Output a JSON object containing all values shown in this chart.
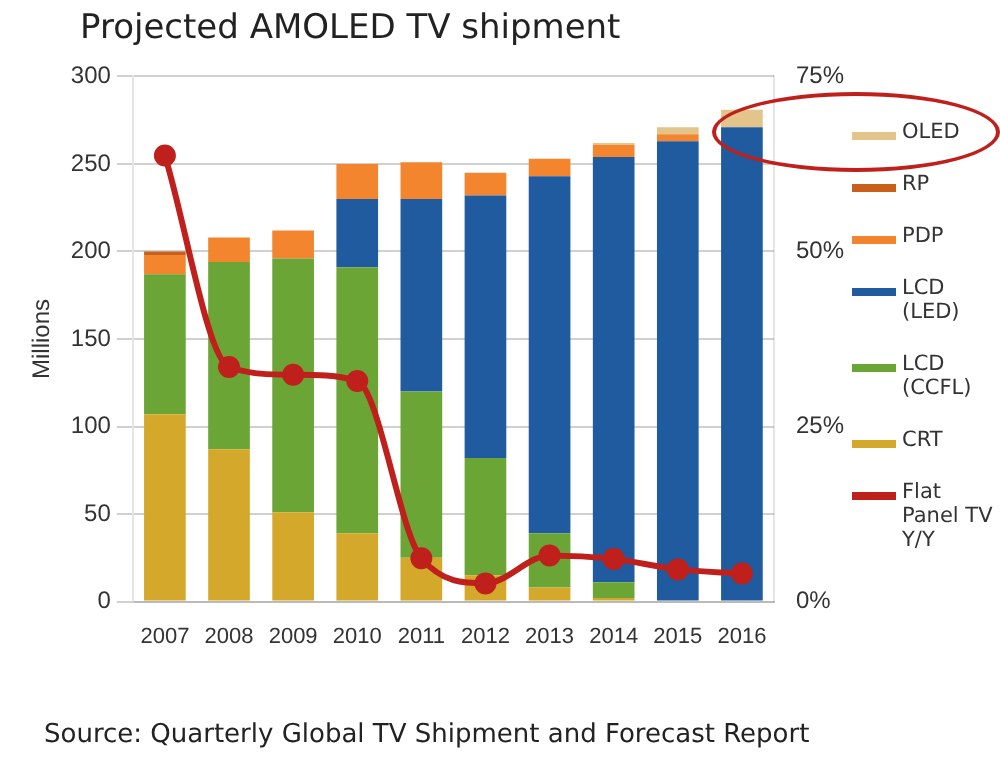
{
  "chart_data": {
    "type": "bar",
    "stacked": true,
    "title": "Projected AMOLED TV shipment",
    "ylabel": "Millions",
    "categories": [
      "2007",
      "2008",
      "2009",
      "2010",
      "2011",
      "2012",
      "2013",
      "2014",
      "2015",
      "2016"
    ],
    "series": [
      {
        "name": "CRT",
        "color": "#d4a82a",
        "values": [
          107,
          87,
          51,
          39,
          25,
          15,
          8,
          2,
          0,
          0
        ]
      },
      {
        "name": "LCD (CCFL)",
        "color": "#6aa536",
        "values": [
          80,
          107,
          145,
          152,
          95,
          67,
          31,
          9,
          0,
          0
        ]
      },
      {
        "name": "LCD (LED)",
        "color": "#1f5b9e",
        "values": [
          0,
          0,
          0,
          39,
          110,
          150,
          204,
          243,
          263,
          271
        ]
      },
      {
        "name": "PDP",
        "color": "#f2852e",
        "values": [
          11,
          14,
          16,
          20,
          21,
          13,
          10,
          7,
          4,
          0
        ]
      },
      {
        "name": "RP",
        "color": "#c8601c",
        "values": [
          2,
          0,
          0,
          0,
          0,
          0,
          0,
          0,
          0,
          0
        ]
      },
      {
        "name": "OLED",
        "color": "#e3c48a",
        "values": [
          0,
          0,
          0,
          0,
          0,
          0,
          0,
          1,
          4,
          10
        ]
      },
      {
        "name": "Flat Panel TV Y/Y",
        "type": "line",
        "axis": "y2",
        "color": "#c0201c",
        "marker": "circle",
        "values": [
          63.7,
          33.5,
          32.4,
          31.5,
          6.2,
          2.6,
          6.6,
          6.1,
          4.6,
          4.0
        ]
      }
    ],
    "ylim": [
      0,
      300
    ],
    "yticks": [
      0,
      50,
      100,
      150,
      200,
      250,
      300
    ],
    "y2lim": [
      0,
      75
    ],
    "y2ticks": [
      {
        "value": 0,
        "label": "0%"
      },
      {
        "value": 25,
        "label": "25%"
      },
      {
        "value": 50,
        "label": "50%"
      },
      {
        "value": 75,
        "label": "75%"
      }
    ],
    "grid": "y",
    "legend": "right",
    "annotations": [
      "Source: Quarterly Global TV Shipment and Forecast Report"
    ]
  }
}
